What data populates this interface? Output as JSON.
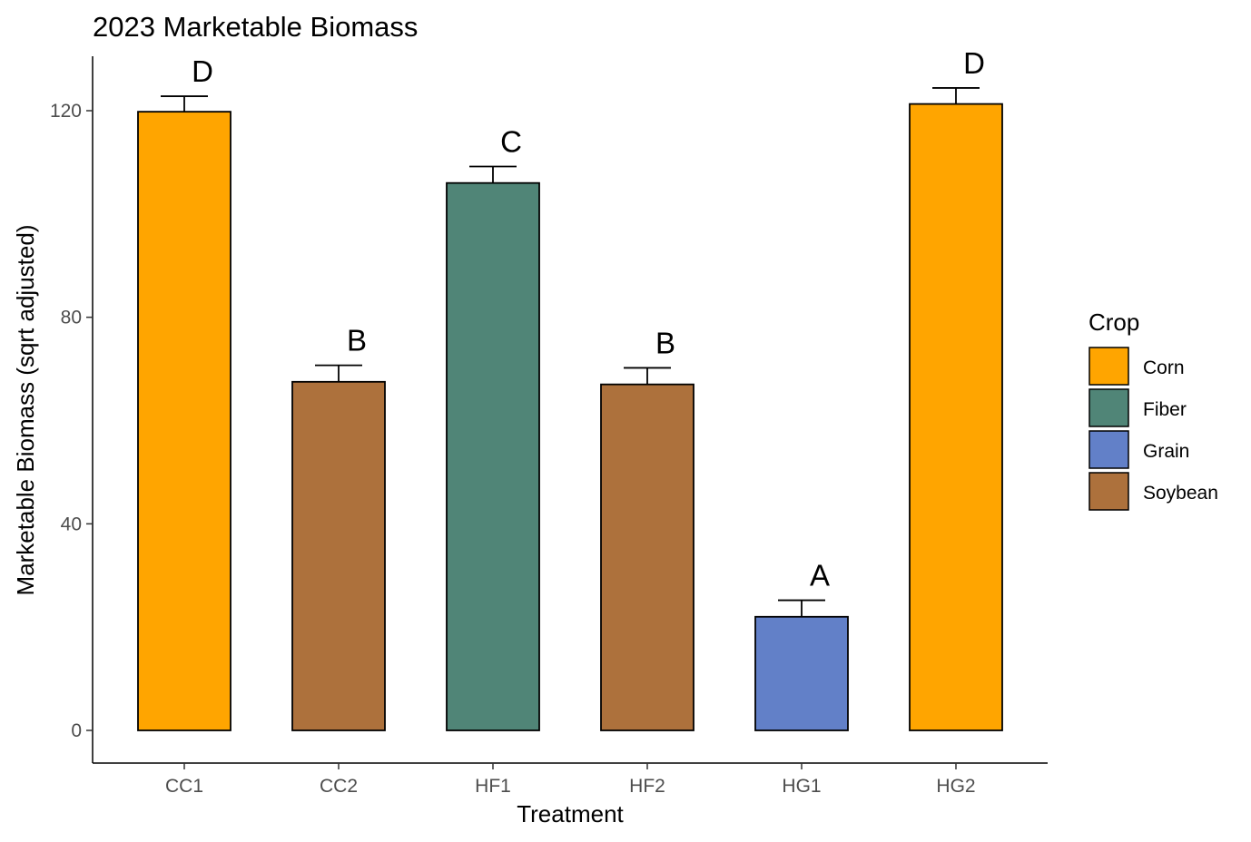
{
  "chart_data": {
    "type": "bar",
    "title": "2023 Marketable Biomass",
    "xlabel": "Treatment",
    "ylabel": "Marketable Biomass (sqrt adjusted)",
    "categories": [
      "CC1",
      "CC2",
      "HF1",
      "HF2",
      "HG1",
      "HG2"
    ],
    "values": [
      119.8,
      67.5,
      106.0,
      67.0,
      22.0,
      121.3
    ],
    "error_upper": [
      122.8,
      70.7,
      109.2,
      70.2,
      25.2,
      124.4
    ],
    "crop": [
      "Corn",
      "Soybean",
      "Fiber",
      "Soybean",
      "Grain",
      "Corn"
    ],
    "significance_labels": [
      "D",
      "B",
      "C",
      "B",
      "A",
      "D"
    ],
    "ylim": [
      -6,
      130
    ],
    "yticks": [
      0,
      40,
      80,
      120
    ],
    "grid": false,
    "legend": {
      "title": "Crop",
      "placement": "right",
      "entries": [
        {
          "label": "Corn",
          "color": "#FFA500"
        },
        {
          "label": "Fiber",
          "color": "#508577"
        },
        {
          "label": "Grain",
          "color": "#6280C8"
        },
        {
          "label": "Soybean",
          "color": "#AD713C"
        }
      ]
    }
  }
}
